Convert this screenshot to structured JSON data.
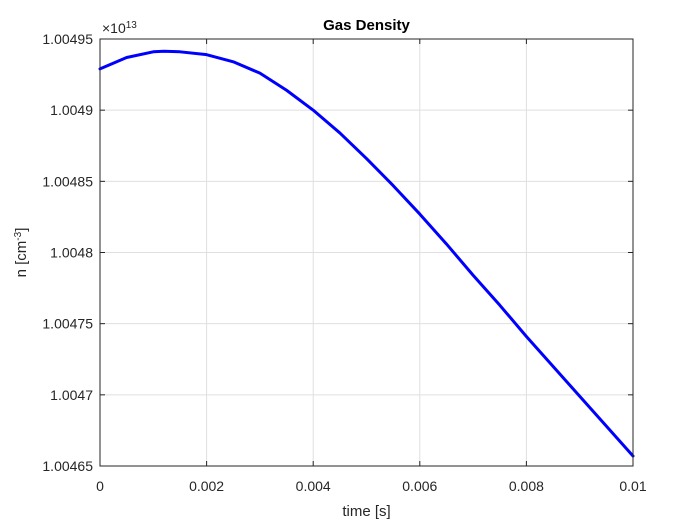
{
  "chart_data": {
    "type": "line",
    "title": "Gas Density",
    "xlabel": "time [s]",
    "ylabel": {
      "base": "n [cm",
      "sup": "-3",
      "close": "]"
    },
    "exponent": {
      "prefix": "×10",
      "power": "13"
    },
    "xlim": [
      0,
      0.01
    ],
    "ylim": [
      1.00465,
      1.00495
    ],
    "xticks": [
      0,
      0.002,
      0.004,
      0.006,
      0.008,
      0.01
    ],
    "xtick_labels": [
      "0",
      "0.002",
      "0.004",
      "0.006",
      "0.008",
      "0.01"
    ],
    "yticks": [
      1.00465,
      1.0047,
      1.00475,
      1.0048,
      1.00485,
      1.0049,
      1.00495
    ],
    "ytick_labels": [
      "1.00465",
      "1.0047",
      "1.00475",
      "1.0048",
      "1.00485",
      "1.0049",
      "1.00495"
    ],
    "grid": true,
    "series": [
      {
        "color": "#0000ff",
        "x": [
          0,
          0.0005,
          0.001,
          0.0012,
          0.0015,
          0.002,
          0.0025,
          0.003,
          0.0035,
          0.004,
          0.0045,
          0.005,
          0.0055,
          0.006,
          0.0065,
          0.007,
          0.0075,
          0.008,
          0.0085,
          0.009,
          0.0095,
          0.01
        ],
        "y": [
          1.004929,
          1.004937,
          1.004941,
          1.0049414,
          1.004941,
          1.004939,
          1.004934,
          1.004926,
          1.004914,
          1.0049,
          1.004884,
          1.004866,
          1.004847,
          1.004827,
          1.004806,
          1.004784,
          1.004763,
          1.004741,
          1.00472,
          1.004699,
          1.004678,
          1.004657
        ]
      }
    ]
  }
}
